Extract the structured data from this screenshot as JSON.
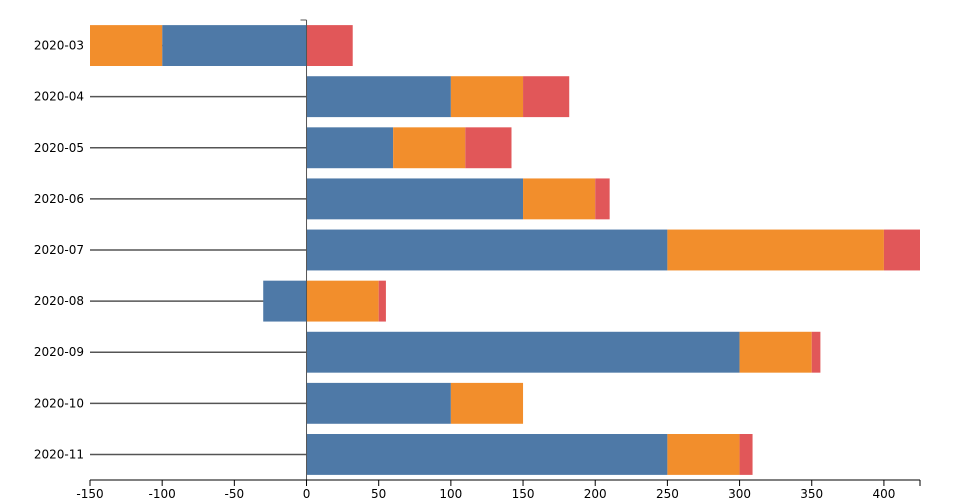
{
  "chart_data": {
    "type": "bar",
    "orientation": "horizontal",
    "stacked": true,
    "diverging": true,
    "categories": [
      "2020-03",
      "2020-04",
      "2020-05",
      "2020-06",
      "2020-07",
      "2020-08",
      "2020-09",
      "2020-10",
      "2020-11"
    ],
    "series": [
      {
        "color": "#4e79a7",
        "values": [
          -100,
          100,
          60,
          150,
          250,
          -30,
          300,
          100,
          250
        ]
      },
      {
        "color": "#f28e2c",
        "values": [
          -50,
          50,
          50,
          50,
          150,
          50,
          50,
          50,
          50
        ]
      },
      {
        "color": "#e15759",
        "values": [
          32,
          32,
          32,
          10,
          25,
          5,
          6,
          0,
          9
        ]
      }
    ],
    "xlim": [
      -150,
      425
    ],
    "xticks": [
      -150,
      -100,
      -50,
      0,
      50,
      100,
      150,
      200,
      250,
      300,
      350,
      400
    ],
    "grid": false,
    "legend": "none"
  }
}
